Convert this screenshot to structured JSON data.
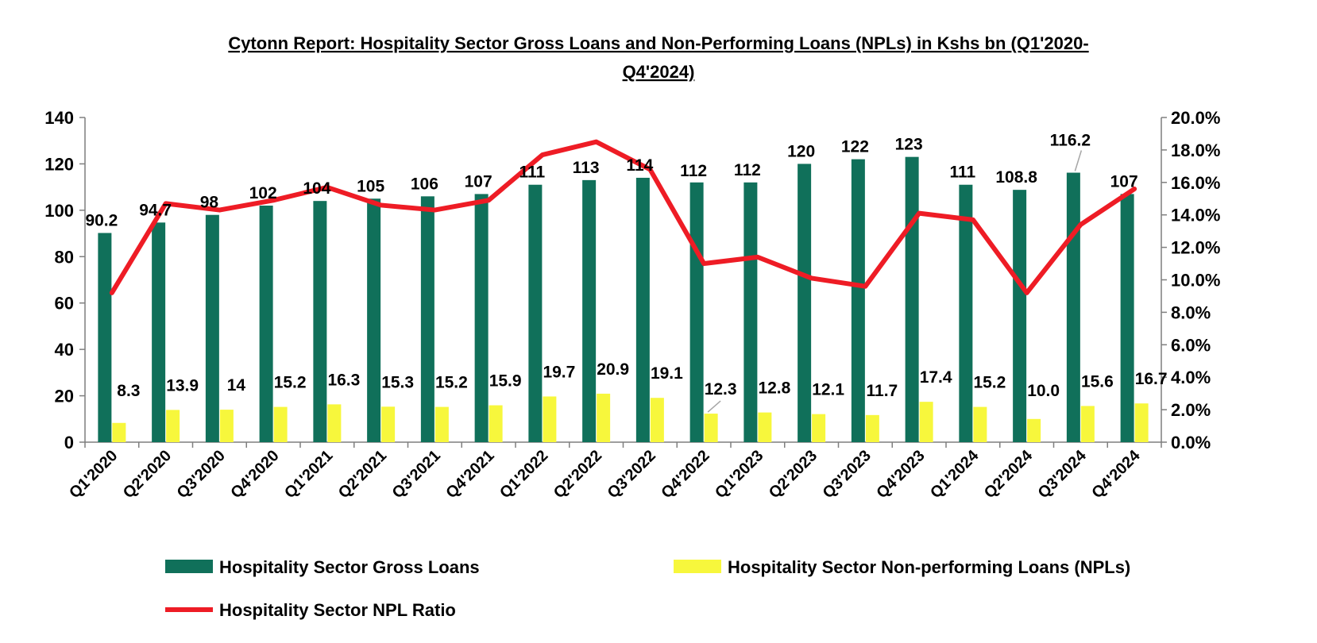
{
  "chart_data": {
    "type": "bar",
    "title_lines": [
      "Cytonn Report: Hospitality Sector Gross Loans and Non-Performing Loans (NPLs) in Kshs bn (Q1'2020-",
      "Q4'2024)"
    ],
    "categories": [
      "Q1'2020",
      "Q2'2020",
      "Q3'2020",
      "Q4'2020",
      "Q1'2021",
      "Q2'2021",
      "Q3'2021",
      "Q4'2021",
      "Q1'2022",
      "Q2'2022",
      "Q3'2022",
      "Q4'2022",
      "Q1'2023",
      "Q2'2023",
      "Q3'2023",
      "Q4'2023",
      "Q1'2024",
      "Q2'2024",
      "Q3'2024",
      "Q4'2024"
    ],
    "series": [
      {
        "name": "Hospitality Sector Gross Loans",
        "kind": "bar",
        "axis": "left",
        "color": "#10705a",
        "values": [
          90.2,
          94.7,
          98,
          102,
          104,
          105,
          106,
          107,
          111,
          113,
          114,
          112,
          112,
          120,
          122,
          123,
          111,
          108.8,
          116.2,
          107
        ],
        "labels": [
          "90.2",
          "94.7",
          "98",
          "102",
          "104",
          "105",
          "106",
          "107",
          "111",
          "113",
          "114",
          "112",
          "112",
          "120",
          "122",
          "123",
          "111",
          "108.8",
          "116.2",
          "107"
        ]
      },
      {
        "name": "Hospitality Sector Non-performing Loans (NPLs)",
        "kind": "bar",
        "axis": "left",
        "color": "#f7f73c",
        "values": [
          8.3,
          13.9,
          14,
          15.2,
          16.3,
          15.3,
          15.2,
          15.9,
          19.7,
          20.9,
          19.1,
          12.3,
          12.8,
          12.1,
          11.7,
          17.4,
          15.2,
          10.0,
          15.6,
          16.7
        ],
        "labels": [
          "8.3",
          "13.9",
          "14",
          "15.2",
          "16.3",
          "15.3",
          "15.2",
          "15.9",
          "19.7",
          "20.9",
          "19.1",
          "12.3",
          "12.8",
          "12.1",
          "11.7",
          "17.4",
          "15.2",
          "10.0",
          "15.6",
          "16.7"
        ]
      },
      {
        "name": "Hospitality Sector NPL Ratio",
        "kind": "line",
        "axis": "right",
        "color": "#ee1c25",
        "values": [
          9.2,
          14.7,
          14.3,
          14.9,
          15.7,
          14.6,
          14.3,
          14.9,
          17.7,
          18.5,
          16.8,
          11.0,
          11.4,
          10.1,
          9.6,
          14.1,
          13.7,
          9.2,
          13.4,
          15.6
        ]
      }
    ],
    "y_left": {
      "min": 0,
      "max": 140,
      "ticks": [
        "0",
        "20",
        "40",
        "60",
        "80",
        "100",
        "120",
        "140"
      ]
    },
    "y_right": {
      "min": 0,
      "max": 20,
      "ticks": [
        "0.0%",
        "2.0%",
        "4.0%",
        "6.0%",
        "8.0%",
        "10.0%",
        "12.0%",
        "14.0%",
        "16.0%",
        "18.0%",
        "20.0%"
      ]
    },
    "grid": false,
    "legend_position": "bottom"
  }
}
